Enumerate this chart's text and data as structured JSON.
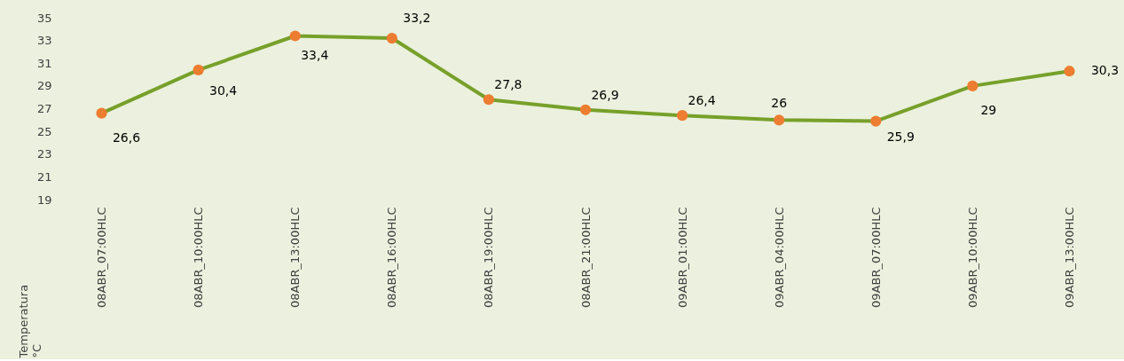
{
  "chart_data": {
    "type": "line",
    "ylabel": "Temperatura\n°C",
    "categories": [
      "08ABR_07:00HLC",
      "08ABR_10:00HLC",
      "08ABR_13:00HLC",
      "08ABR_16:00HLC",
      "08ABR_19:00HLC",
      "08ABR_21:00HLC",
      "09ABR_01:00HLC",
      "09ABR_04:00HLC",
      "09ABR_07:00HLC",
      "09ABR_10:00HLC",
      "09ABR_13:00HLC"
    ],
    "series": [
      {
        "color": "#77a02a",
        "colors": [
          "#ed7d31",
          "#ed7d31",
          "#ed7d31",
          "#ed7d31",
          "#ed7d31",
          "#ed7d31",
          "#ed7d31",
          "#ed7d31",
          "#ed7d31",
          "#ed7d31",
          "#ed7d31"
        ],
        "values": [
          26.6,
          30.4,
          33.4,
          33.2,
          27.8,
          26.9,
          26.4,
          26,
          25.9,
          29,
          30.3
        ],
        "value_labels": [
          "26,6",
          "30,4",
          "33,4",
          "33,2",
          "27,8",
          "26,9",
          "26,4",
          "26",
          "25,9",
          "29",
          "30,3"
        ]
      }
    ],
    "ylim": [
      19,
      35
    ],
    "yticks": [
      19,
      21,
      23,
      25,
      27,
      29,
      31,
      33,
      35
    ],
    "marker": "circle",
    "line_style": "solid"
  }
}
